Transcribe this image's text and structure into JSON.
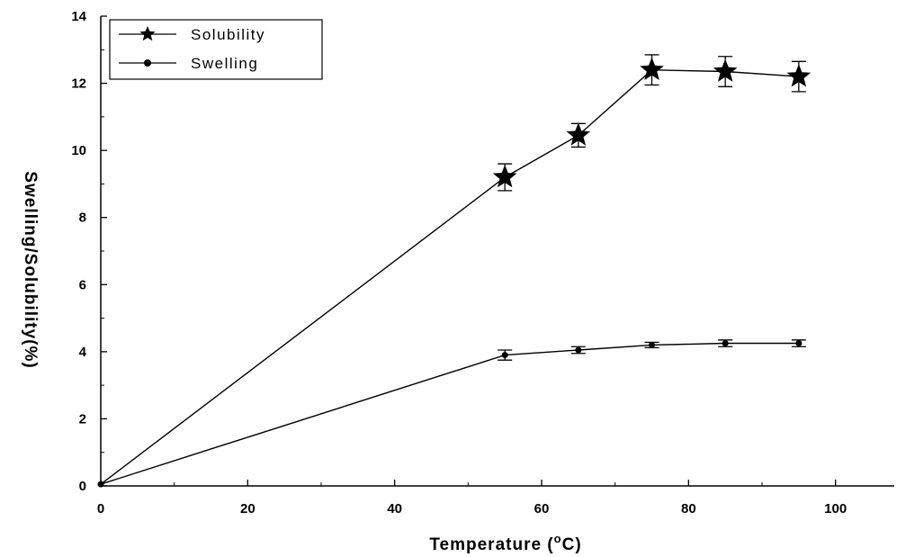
{
  "chart_data": {
    "type": "line",
    "xlabel": "Temperature (",
    "xlabel_unit_sup": "o",
    "xlabel_unit": "C)",
    "ylabel": "Swelling/Solubility(%)",
    "xlim": [
      0,
      108
    ],
    "ylim": [
      0,
      14
    ],
    "xticks": [
      0,
      20,
      40,
      60,
      80,
      100
    ],
    "yticks": [
      0,
      2,
      4,
      6,
      8,
      10,
      12,
      14
    ],
    "grid": false,
    "legend_position": "top-left",
    "series": [
      {
        "name": "Solubility",
        "marker": "star",
        "color": "#000000",
        "x": [
          0,
          55,
          65,
          75,
          85,
          95
        ],
        "y": [
          0.05,
          9.2,
          10.45,
          12.4,
          12.35,
          12.2
        ],
        "error": [
          0,
          0.4,
          0.35,
          0.45,
          0.45,
          0.45
        ]
      },
      {
        "name": "Swelling",
        "marker": "circle",
        "color": "#000000",
        "x": [
          0,
          55,
          65,
          75,
          85,
          95
        ],
        "y": [
          0.05,
          3.9,
          4.05,
          4.2,
          4.25,
          4.25
        ],
        "error": [
          0,
          0.15,
          0.1,
          0.08,
          0.1,
          0.1
        ]
      }
    ]
  }
}
